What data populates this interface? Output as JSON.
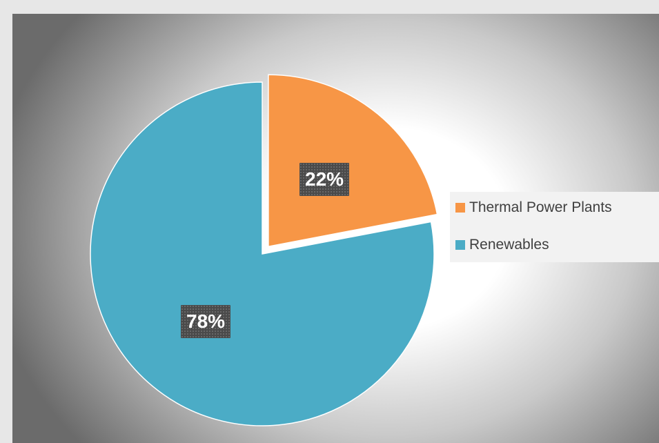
{
  "chart_data": {
    "type": "pie",
    "title": "",
    "categories": [
      "Thermal Power Plants",
      "Renewables"
    ],
    "values": [
      22,
      78
    ],
    "data_labels": [
      "22%",
      "78%"
    ],
    "colors": [
      "#f79646",
      "#4bacc6"
    ],
    "exploded": [
      true,
      false
    ],
    "legend_position": "right",
    "data_label_style": "dark patterned box with bold white text"
  }
}
